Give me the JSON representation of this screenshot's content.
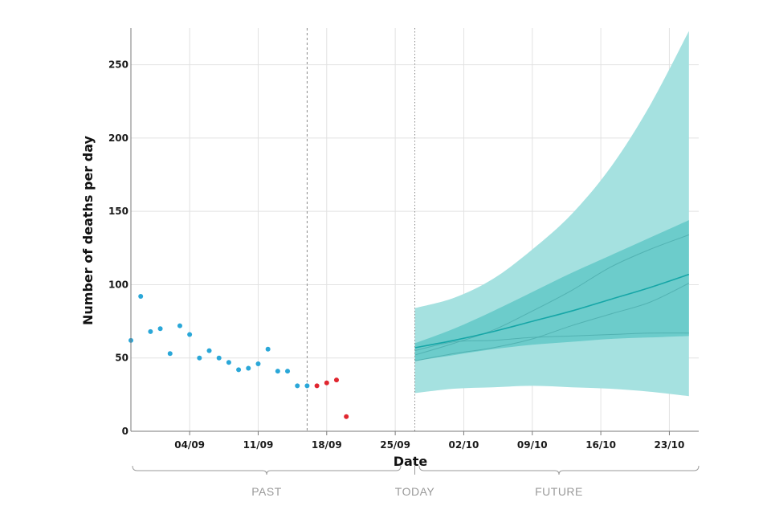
{
  "chart_data": {
    "type": "scatter+area",
    "xlabel": "Date",
    "ylabel": "Number of deaths per day",
    "ylim": [
      0,
      275
    ],
    "yticks": [
      0,
      50,
      100,
      150,
      200,
      250
    ],
    "xticks": [
      {
        "date": "2020-09-04",
        "label": "04/09"
      },
      {
        "date": "2020-09-11",
        "label": "11/09"
      },
      {
        "date": "2020-09-18",
        "label": "18/09"
      },
      {
        "date": "2020-09-25",
        "label": "25/09"
      },
      {
        "date": "2020-10-02",
        "label": "02/10"
      },
      {
        "date": "2020-10-09",
        "label": "09/10"
      },
      {
        "date": "2020-10-16",
        "label": "16/10"
      },
      {
        "date": "2020-10-23",
        "label": "23/10"
      }
    ],
    "xlim": [
      "2020-08-29",
      "2020-10-26"
    ],
    "grid": true,
    "vertical_markers": [
      {
        "date": "2020-09-16",
        "style": "dashed"
      },
      {
        "date": "2020-09-27",
        "style": "dotted"
      }
    ],
    "period_labels": {
      "past": "PAST",
      "today": "TODAY",
      "future": "FUTURE"
    },
    "colors": {
      "observed": "#2aa7d8",
      "recent": "#e0262f",
      "outer_band": "#a5e1e0",
      "inner_band": "#6ccccb",
      "median": "#16a6a7",
      "scenario": "#4aa9a9"
    },
    "observed": {
      "dates": [
        "2020-08-29",
        "2020-08-30",
        "2020-08-31",
        "2020-09-01",
        "2020-09-02",
        "2020-09-03",
        "2020-09-04",
        "2020-09-05",
        "2020-09-06",
        "2020-09-07",
        "2020-09-08",
        "2020-09-09",
        "2020-09-10",
        "2020-09-11",
        "2020-09-12",
        "2020-09-13",
        "2020-09-14",
        "2020-09-15",
        "2020-09-16"
      ],
      "values": [
        62,
        92,
        68,
        70,
        53,
        72,
        66,
        50,
        55,
        50,
        47,
        42,
        43,
        46,
        56,
        41,
        41,
        31,
        31
      ]
    },
    "recent": {
      "dates": [
        "2020-09-17",
        "2020-09-18",
        "2020-09-19",
        "2020-09-20"
      ],
      "values": [
        31,
        33,
        35,
        10
      ]
    },
    "forecast": {
      "dates": [
        "2020-09-27",
        "2020-10-01",
        "2020-10-05",
        "2020-10-09",
        "2020-10-13",
        "2020-10-17",
        "2020-10-21",
        "2020-10-25"
      ],
      "median": [
        57,
        62,
        68,
        75,
        82,
        90,
        98,
        107
      ],
      "inner_lower": [
        48,
        52,
        56,
        59,
        61,
        63,
        64,
        65
      ],
      "inner_upper": [
        60,
        70,
        82,
        95,
        108,
        120,
        132,
        144
      ],
      "outer_lower": [
        26,
        29,
        30,
        31,
        30,
        29,
        27,
        24
      ],
      "outer_upper": [
        84,
        91,
        104,
        124,
        148,
        180,
        222,
        273
      ],
      "scenarios": [
        [
          48,
          53,
          57,
          63,
          72,
          80,
          88,
          101
        ],
        [
          52,
          60,
          69,
          82,
          96,
          112,
          124,
          134
        ],
        [
          55,
          61,
          62,
          64,
          65,
          66,
          67,
          67
        ]
      ]
    }
  }
}
